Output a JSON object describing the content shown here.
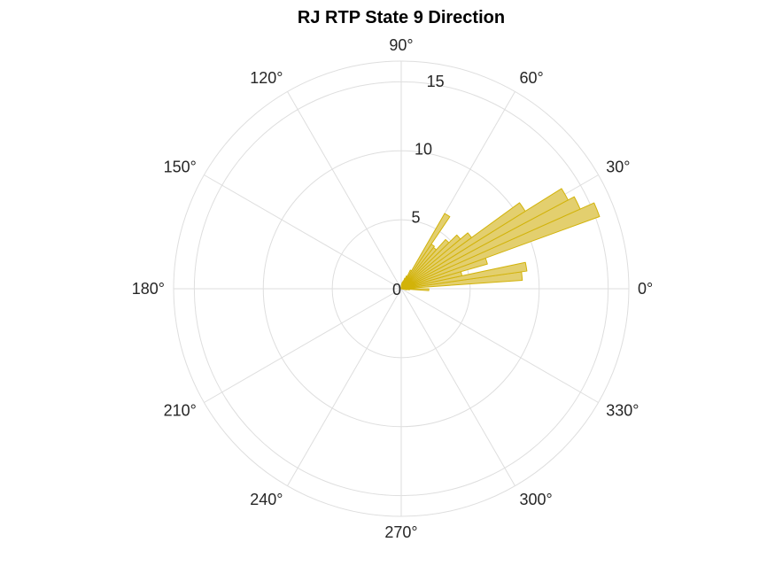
{
  "chart_data": {
    "type": "polar-histogram",
    "title": "RJ  RTP State 9 Direction",
    "angle_ticks": [
      {
        "deg": 0,
        "label": "0°"
      },
      {
        "deg": 30,
        "label": "30°"
      },
      {
        "deg": 60,
        "label": "60°"
      },
      {
        "deg": 90,
        "label": "90°"
      },
      {
        "deg": 120,
        "label": "120°"
      },
      {
        "deg": 150,
        "label": "150°"
      },
      {
        "deg": 180,
        "label": "180°"
      },
      {
        "deg": 210,
        "label": "210°"
      },
      {
        "deg": 240,
        "label": "240°"
      },
      {
        "deg": 270,
        "label": "270°"
      },
      {
        "deg": 300,
        "label": "300°"
      },
      {
        "deg": 330,
        "label": "330°"
      }
    ],
    "radial_ticks": [
      {
        "value": 0,
        "label": "0"
      },
      {
        "value": 5,
        "label": "5"
      },
      {
        "value": 10,
        "label": "10"
      },
      {
        "value": 15,
        "label": "15"
      }
    ],
    "rlim": [
      0,
      16.5
    ],
    "bin_width_deg": 4,
    "bins": [
      {
        "start": -12,
        "end": -8,
        "count": 0.4
      },
      {
        "start": -8,
        "end": -4,
        "count": 0.6
      },
      {
        "start": -4,
        "end": 0,
        "count": 2
      },
      {
        "start": 0,
        "end": 4,
        "count": 0.8
      },
      {
        "start": 4,
        "end": 8,
        "count": 8.8
      },
      {
        "start": 8,
        "end": 12,
        "count": 9.2
      },
      {
        "start": 12,
        "end": 16,
        "count": 4.5
      },
      {
        "start": 16,
        "end": 20,
        "count": 6.5
      },
      {
        "start": 20,
        "end": 24,
        "count": 15.3
      },
      {
        "start": 24,
        "end": 28,
        "count": 14.2
      },
      {
        "start": 28,
        "end": 32,
        "count": 13.7
      },
      {
        "start": 32,
        "end": 36,
        "count": 10.6
      },
      {
        "start": 36,
        "end": 40,
        "count": 6.3
      },
      {
        "start": 40,
        "end": 44,
        "count": 5.6
      },
      {
        "start": 44,
        "end": 48,
        "count": 4.8
      },
      {
        "start": 48,
        "end": 52,
        "count": 3.8
      },
      {
        "start": 52,
        "end": 56,
        "count": 3.9
      },
      {
        "start": 56,
        "end": 60,
        "count": 6.3
      },
      {
        "start": 60,
        "end": 64,
        "count": 1.5
      },
      {
        "start": 64,
        "end": 68,
        "count": 1.0
      },
      {
        "start": 68,
        "end": 72,
        "count": 0.8
      },
      {
        "start": 72,
        "end": 76,
        "count": 0.6
      },
      {
        "start": 76,
        "end": 80,
        "count": 0.5
      },
      {
        "start": 80,
        "end": 84,
        "count": 0.4
      },
      {
        "start": 84,
        "end": 88,
        "count": 0.3
      }
    ],
    "grid": true,
    "colors": {
      "bar_fill": "#e3cf6e",
      "bar_stroke": "#d2b30a",
      "grid": "#dedede",
      "text": "#262626",
      "title": "#000000"
    }
  }
}
